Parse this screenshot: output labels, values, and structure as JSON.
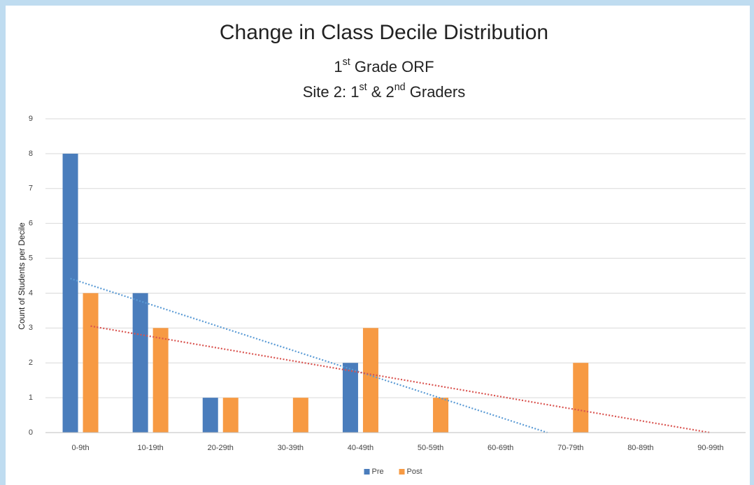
{
  "chart_data": {
    "type": "bar",
    "title": "Change in Class Decile Distribution",
    "subtitle": [
      "1st Grade ORF",
      "Site 2: 1st & 2nd Graders"
    ],
    "y_label": "Count of Students per Decile",
    "categories": [
      "0-9th",
      "10-19th",
      "20-29th",
      "30-39th",
      "40-49th",
      "50-59th",
      "60-69th",
      "70-79th",
      "80-89th",
      "90-99th"
    ],
    "series": [
      {
        "name": "Pre",
        "color": "#4a7dbc",
        "trendline_color": "#5b9bd5",
        "values": [
          8,
          4,
          1,
          0,
          2,
          0,
          0,
          0,
          0,
          0
        ]
      },
      {
        "name": "Post",
        "color": "#f79a43",
        "trendline_color": "#d9534f",
        "values": [
          4,
          3,
          1,
          1,
          3,
          1,
          0,
          2,
          0,
          0
        ]
      }
    ],
    "ylim": [
      0,
      9
    ],
    "yticks": [
      0,
      1,
      2,
      3,
      4,
      5,
      6,
      7,
      8,
      9
    ],
    "grid": true,
    "trendlines": true,
    "legend": "bottom"
  }
}
